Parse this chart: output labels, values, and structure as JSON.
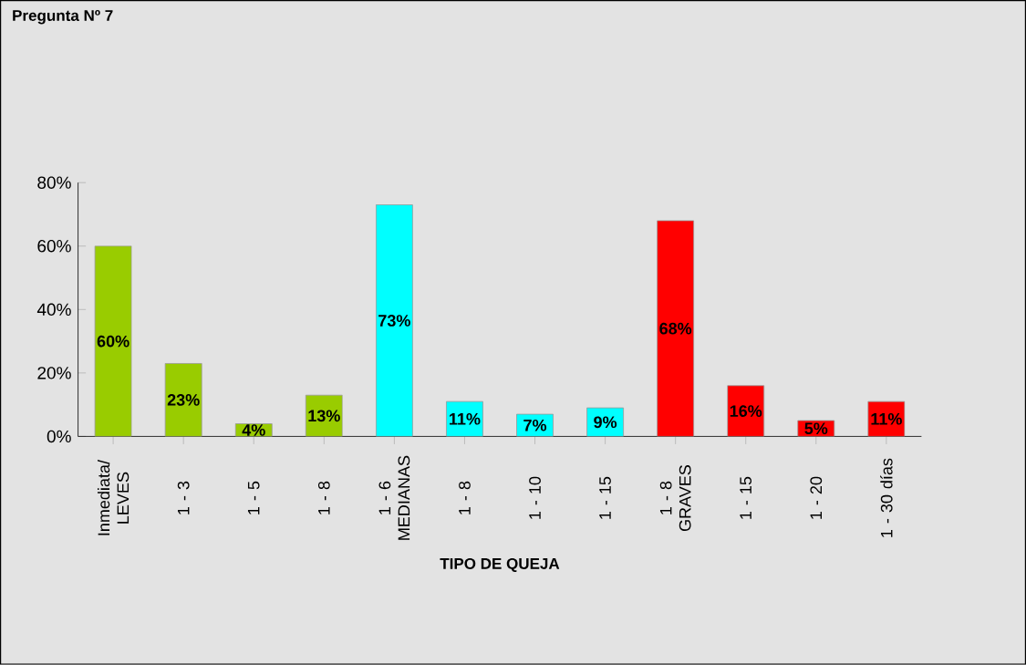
{
  "chart_data": {
    "type": "bar",
    "title": "Pregunta Nº 7",
    "xlabel": "TIPO DE QUEJA",
    "categories": [
      "Inmediata/ LEVES",
      "1 - 3",
      "1 - 5",
      "1 - 8",
      "1 - 6 MEDIANAS",
      "1 - 8",
      "1 - 10",
      "1 - 15",
      "1 - 8 GRAVES",
      "1 - 15",
      "1 - 20",
      "1 - 30 días"
    ],
    "values": [
      60,
      23,
      4,
      13,
      73,
      11,
      7,
      9,
      68,
      16,
      5,
      11
    ],
    "colors": [
      "#99cc00",
      "#99cc00",
      "#99cc00",
      "#99cc00",
      "#00ffff",
      "#00ffff",
      "#00ffff",
      "#00ffff",
      "#ff0000",
      "#ff0000",
      "#ff0000",
      "#ff0000"
    ],
    "value_labels": [
      "60%",
      "23%",
      "4%",
      "13%",
      "73%",
      "11%",
      "7%",
      "9%",
      "68%",
      "16%",
      "5%",
      "11%"
    ],
    "ylim": [
      0,
      80
    ],
    "yticks": [
      {
        "value": 0,
        "label": "0%"
      },
      {
        "value": 20,
        "label": "20%"
      },
      {
        "value": 40,
        "label": "40%"
      },
      {
        "value": 60,
        "label": "60%"
      },
      {
        "value": 80,
        "label": "80%"
      }
    ],
    "grid": false
  }
}
